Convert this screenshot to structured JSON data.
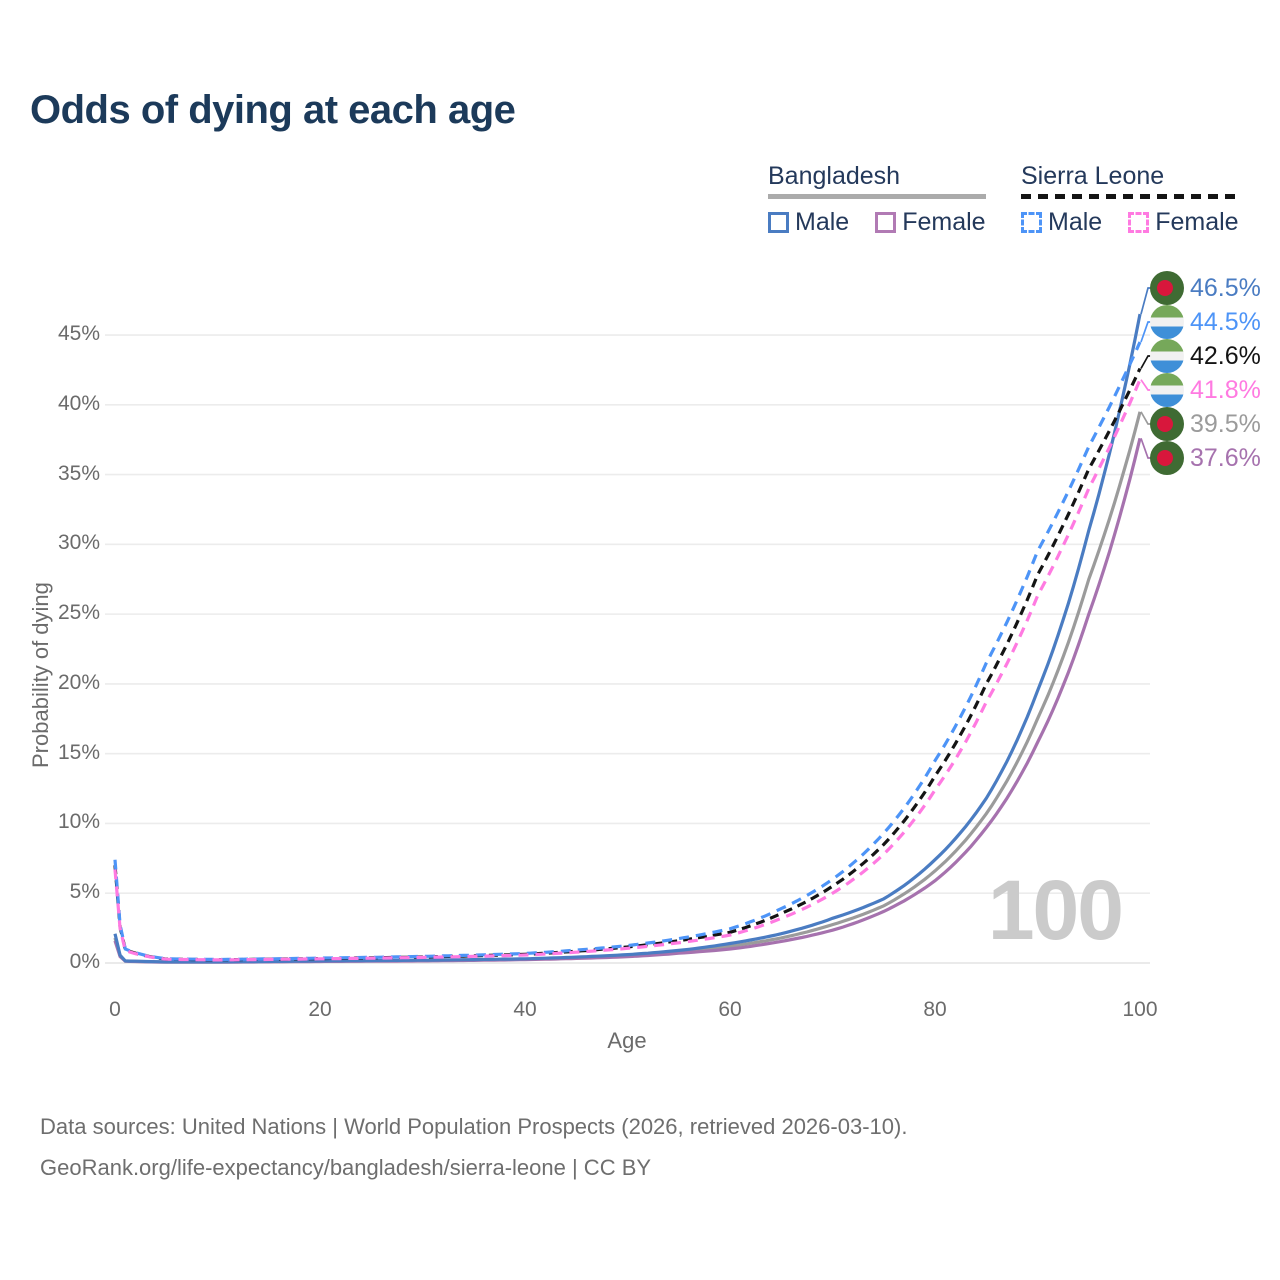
{
  "title": "Odds of dying at each age",
  "watermark": "100",
  "legend": {
    "groups": [
      {
        "label": "Bangladesh",
        "line_style": "solid",
        "underline_color": "#ababab",
        "items": [
          {
            "label": "Male",
            "color": "#4a7cc2",
            "dashed": false
          },
          {
            "label": "Female",
            "color": "#b17ab4",
            "dashed": false
          }
        ]
      },
      {
        "label": "Sierra Leone",
        "line_style": "dashed",
        "underline_color": "#141414",
        "items": [
          {
            "label": "Male",
            "color": "#4d94f7",
            "dashed": true
          },
          {
            "label": "Female",
            "color": "#ff7ae1",
            "dashed": true
          }
        ]
      }
    ]
  },
  "axes": {
    "x_label": "Age",
    "y_label": "Probability of dying",
    "x_ticks": [
      0,
      20,
      40,
      60,
      80,
      100
    ],
    "y_ticks": [
      "0%",
      "5%",
      "10%",
      "15%",
      "20%",
      "25%",
      "30%",
      "35%",
      "40%",
      "45%"
    ],
    "x_range": [
      0,
      100
    ],
    "y_range_pct": [
      0,
      48
    ],
    "grid": "horizontal-only"
  },
  "end_labels": [
    {
      "value": "46.5%",
      "flag": "bangladesh",
      "color": "#4a7cc2",
      "series": "Bangladesh Male"
    },
    {
      "value": "44.5%",
      "flag": "sierra-leone",
      "color": "#4d94f7",
      "series": "Sierra Leone Male"
    },
    {
      "value": "42.6%",
      "flag": "sierra-leone",
      "color": "#141414",
      "series": "Sierra Leone Total"
    },
    {
      "value": "41.8%",
      "flag": "sierra-leone",
      "color": "#ff7ae1",
      "series": "Sierra Leone Female"
    },
    {
      "value": "39.5%",
      "flag": "bangladesh",
      "color": "#9b9b9b",
      "series": "Bangladesh Total"
    },
    {
      "value": "37.6%",
      "flag": "bangladesh",
      "color": "#a672ae",
      "series": "Bangladesh Female"
    }
  ],
  "footer": {
    "line1": "Data sources: United Nations | World Population Prospects (2026, retrieved 2026-03-10).",
    "line2": "GeoRank.org/life-expectancy/bangladesh/sierra-leone | CC BY"
  },
  "chart_data": {
    "type": "line",
    "title": "Odds of dying at each age",
    "xlabel": "Age",
    "ylabel": "Probability of dying",
    "x_range": [
      0,
      100
    ],
    "y_range_pct": [
      0,
      48
    ],
    "legend_position": "top-right",
    "x": [
      0,
      1,
      5,
      10,
      20,
      30,
      40,
      50,
      55,
      60,
      65,
      70,
      75,
      80,
      85,
      90,
      95,
      100
    ],
    "series": [
      {
        "name": "Bangladesh Total",
        "color": "#9b9b9b",
        "dashed": false,
        "values": [
          1.8,
          0.14,
          0.07,
          0.07,
          0.13,
          0.18,
          0.27,
          0.52,
          0.8,
          1.2,
          1.8,
          2.75,
          4.1,
          6.6,
          10.7,
          17.5,
          27.5,
          39.5
        ]
      },
      {
        "name": "Bangladesh Female",
        "color": "#a672ae",
        "dashed": false,
        "values": [
          1.6,
          0.13,
          0.06,
          0.06,
          0.11,
          0.15,
          0.24,
          0.45,
          0.7,
          1.0,
          1.55,
          2.35,
          3.7,
          5.9,
          9.7,
          15.8,
          25.0,
          37.6
        ]
      },
      {
        "name": "Bangladesh Male",
        "color": "#4a7cc2",
        "dashed": false,
        "values": [
          2.1,
          0.15,
          0.08,
          0.08,
          0.15,
          0.2,
          0.3,
          0.6,
          0.9,
          1.4,
          2.1,
          3.2,
          4.6,
          7.4,
          11.8,
          19.5,
          31.0,
          46.5
        ]
      },
      {
        "name": "Sierra Leone Total",
        "color": "#141414",
        "dashed": true,
        "values": [
          7.0,
          0.95,
          0.28,
          0.23,
          0.32,
          0.43,
          0.62,
          1.15,
          1.6,
          2.2,
          3.55,
          5.5,
          8.5,
          13.4,
          20.0,
          27.8,
          35.4,
          42.6
        ]
      },
      {
        "name": "Sierra Leone Male",
        "color": "#4d94f7",
        "dashed": true,
        "values": [
          7.4,
          1.0,
          0.3,
          0.25,
          0.35,
          0.47,
          0.68,
          1.25,
          1.75,
          2.45,
          3.9,
          6.0,
          9.3,
          14.5,
          21.5,
          29.5,
          37.0,
          44.5
        ]
      },
      {
        "name": "Sierra Leone Female",
        "color": "#ff7ae1",
        "dashed": true,
        "values": [
          6.7,
          0.9,
          0.27,
          0.22,
          0.3,
          0.4,
          0.57,
          1.05,
          1.45,
          2.0,
          3.2,
          5.0,
          7.8,
          12.4,
          18.7,
          26.3,
          34.0,
          41.8
        ]
      }
    ]
  }
}
